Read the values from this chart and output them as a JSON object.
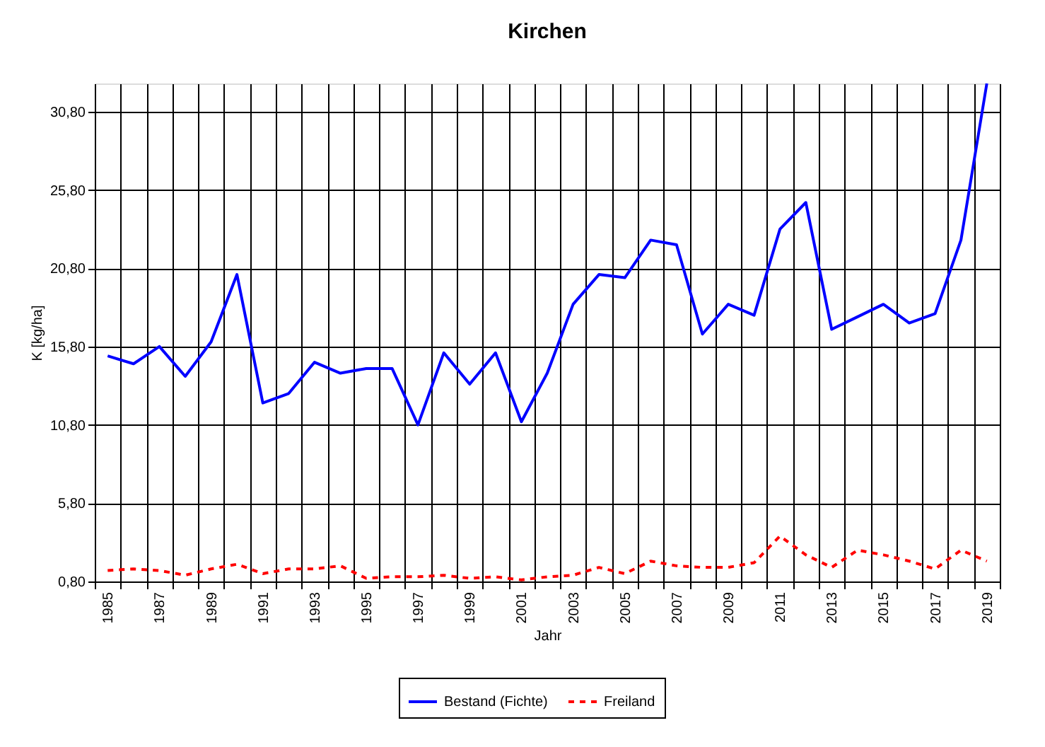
{
  "chart_data": {
    "type": "line",
    "title": "Kirchen",
    "xlabel": "Jahr",
    "ylabel": "K [kg/ha]",
    "categories": [
      "1985",
      null,
      "1987",
      null,
      "1989",
      null,
      "1991",
      null,
      "1993",
      null,
      "1995",
      null,
      "1997",
      null,
      "1999",
      null,
      "2001",
      null,
      "2003",
      null,
      "2005",
      null,
      "2007",
      null,
      "2009",
      null,
      "2011",
      null,
      "2013",
      null,
      "2015",
      null,
      "2017",
      null,
      "2019"
    ],
    "series": [
      {
        "name": "Bestand (Fichte)",
        "color": "#0000ff",
        "line_style": "solid",
        "values": [
          15.2,
          14.7,
          15.8,
          13.9,
          16.1,
          20.4,
          12.2,
          12.8,
          14.8,
          14.1,
          14.4,
          14.4,
          10.8,
          15.4,
          13.4,
          15.4,
          11.0,
          14.1,
          18.5,
          20.4,
          20.2,
          22.6,
          22.3,
          16.6,
          18.5,
          17.8,
          23.3,
          25.0,
          16.9,
          17.7,
          18.5,
          17.3,
          17.9,
          22.6,
          32.6
        ]
      },
      {
        "name": "Freiland",
        "color": "#ff0000",
        "line_style": "dashed",
        "values": [
          1.5,
          1.6,
          1.5,
          1.2,
          1.6,
          1.9,
          1.3,
          1.6,
          1.6,
          1.8,
          1.0,
          1.1,
          1.1,
          1.2,
          1.0,
          1.1,
          0.9,
          1.1,
          1.2,
          1.7,
          1.3,
          2.1,
          1.8,
          1.7,
          1.7,
          2.0,
          3.7,
          2.5,
          1.7,
          2.8,
          2.5,
          2.1,
          1.6,
          2.8,
          2.1
        ]
      }
    ],
    "ylim": [
      0.8,
      32.6
    ],
    "yticks": [
      {
        "value": 0.8,
        "label": "0,80"
      },
      {
        "value": 5.8,
        "label": "5,80"
      },
      {
        "value": 10.8,
        "label": "10,80"
      },
      {
        "value": 15.8,
        "label": "15,80"
      },
      {
        "value": 20.8,
        "label": "20,80"
      },
      {
        "value": 25.8,
        "label": "25,80"
      },
      {
        "value": 30.8,
        "label": "30,80"
      }
    ],
    "grid": true,
    "legend": "bottom"
  }
}
